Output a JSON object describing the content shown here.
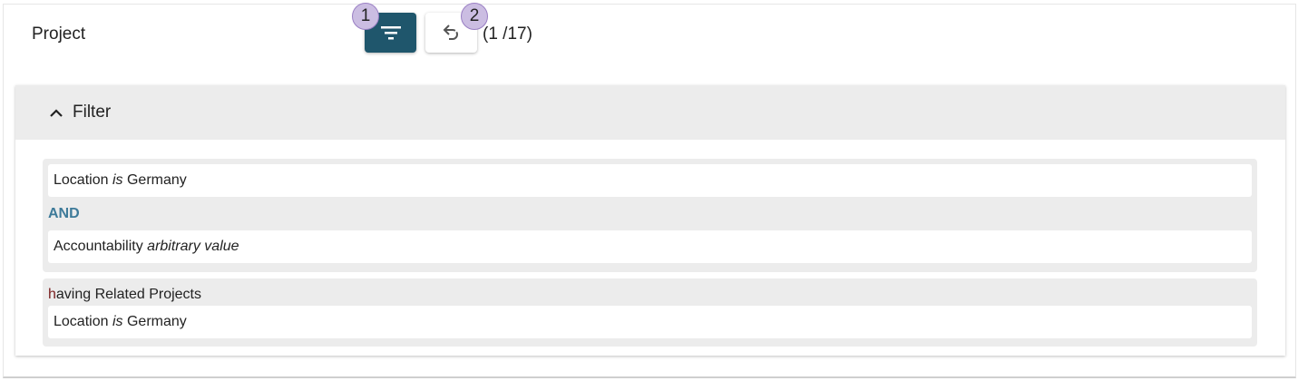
{
  "header": {
    "title": "Project",
    "filter_badge": "1",
    "undo_badge": "2",
    "count": "(1 /17)"
  },
  "icons": {
    "filter": "filter-icon",
    "undo": "undo-icon",
    "collapse": "chevron-up-icon"
  },
  "colors": {
    "accent": "#1f566c",
    "and": "#3d7a99",
    "badge": "#cbbde2"
  },
  "filter": {
    "label": "Filter",
    "conditions": [
      {
        "field": "Location",
        "op": "is",
        "value": "Germany"
      },
      {
        "field": "Accountability",
        "op": "arbitrary value",
        "value": ""
      }
    ],
    "operator": "AND",
    "related": {
      "h": "h",
      "label": "aving Related Projects",
      "condition": {
        "field": "Location",
        "op": "is",
        "value": "Germany"
      }
    }
  }
}
